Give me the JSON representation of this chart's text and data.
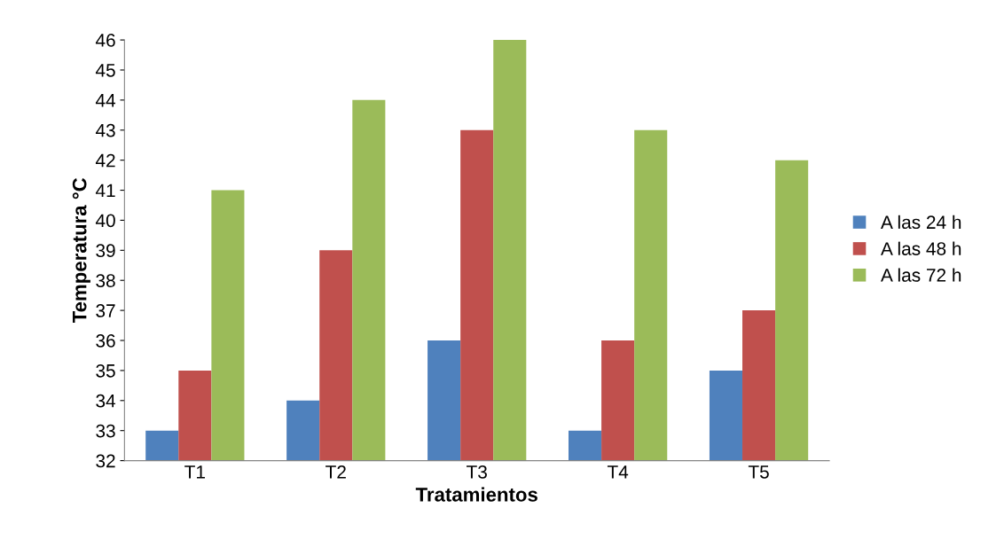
{
  "chart_data": {
    "type": "bar",
    "xlabel": "Tratamientos",
    "ylabel": "Temperatura °C",
    "categories": [
      "T1",
      "T2",
      "T3",
      "T4",
      "T5"
    ],
    "series": [
      {
        "name": "A las 24 h",
        "color": "#4f81bd",
        "values": [
          33,
          34,
          36,
          33,
          35
        ]
      },
      {
        "name": "A las 48 h",
        "color": "#c0504d",
        "values": [
          35,
          39,
          43,
          36,
          37
        ]
      },
      {
        "name": "A las 72 h",
        "color": "#9bbb59",
        "values": [
          41,
          44,
          46,
          43,
          42
        ]
      }
    ],
    "ylim": [
      32,
      46
    ],
    "yticks": [
      32,
      33,
      34,
      35,
      36,
      37,
      38,
      39,
      40,
      41,
      42,
      43,
      44,
      45,
      46
    ],
    "grid": false,
    "legend": "right"
  }
}
